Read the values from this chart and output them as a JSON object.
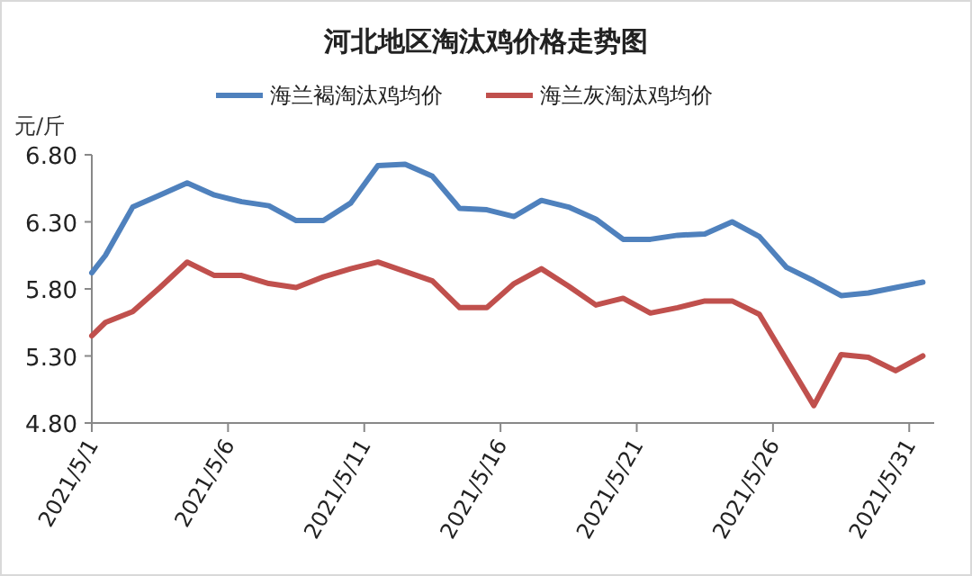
{
  "chart_data": {
    "type": "line",
    "title": "河北地区淘汰鸡价格走势图",
    "ylabel": "元/斤",
    "x": [
      "2021-05-01T00:00",
      "2021-05-01T12:00",
      "2021-05-02T12:00",
      "2021-05-03T12:00",
      "2021-05-04T12:00",
      "2021-05-05T12:00",
      "2021-05-06T12:00",
      "2021-05-07T12:00",
      "2021-05-08T12:00",
      "2021-05-09T12:00",
      "2021-05-10T12:00",
      "2021-05-11T12:00",
      "2021-05-12T12:00",
      "2021-05-13T12:00",
      "2021-05-14T12:00",
      "2021-05-15T12:00",
      "2021-05-16T12:00",
      "2021-05-17T12:00",
      "2021-05-18T12:00",
      "2021-05-19T12:00",
      "2021-05-20T12:00",
      "2021-05-21T12:00",
      "2021-05-22T12:00",
      "2021-05-23T12:00",
      "2021-05-24T12:00",
      "2021-05-25T12:00",
      "2021-05-26T12:00",
      "2021-05-27T12:00",
      "2021-05-28T12:00",
      "2021-05-29T12:00",
      "2021-05-30T12:00",
      "2021-05-31T12:00"
    ],
    "series": [
      {
        "name": "海兰褐淘汰鸡均价",
        "color": "#4f81bd",
        "values": [
          5.92,
          6.05,
          6.41,
          6.5,
          6.59,
          6.5,
          6.45,
          6.42,
          6.31,
          6.31,
          6.44,
          6.72,
          6.73,
          6.64,
          6.4,
          6.39,
          6.34,
          6.46,
          6.41,
          6.32,
          6.17,
          6.17,
          6.2,
          6.21,
          6.3,
          6.19,
          5.96,
          5.86,
          5.75,
          5.77,
          5.81,
          5.85
        ]
      },
      {
        "name": "海兰灰淘汰鸡均价",
        "color": "#c0504d",
        "values": [
          5.45,
          5.55,
          5.63,
          5.81,
          6.0,
          5.9,
          5.9,
          5.84,
          5.81,
          5.89,
          5.95,
          6.0,
          5.93,
          5.86,
          5.66,
          5.66,
          5.84,
          5.95,
          5.82,
          5.68,
          5.73,
          5.62,
          5.66,
          5.71,
          5.71,
          5.61,
          5.27,
          4.93,
          5.31,
          5.29,
          5.19,
          5.3
        ]
      }
    ],
    "xlim": [
      "2021-05-01",
      "2021-05-31T22:00"
    ],
    "xticks": [
      {
        "value": "2021-05-01",
        "label": "2021/5/1"
      },
      {
        "value": "2021-05-06",
        "label": "2021/5/6"
      },
      {
        "value": "2021-05-11",
        "label": "2021/5/11"
      },
      {
        "value": "2021-05-16",
        "label": "2021/5/16"
      },
      {
        "value": "2021-05-21",
        "label": "2021/5/21"
      },
      {
        "value": "2021-05-26",
        "label": "2021/5/26"
      },
      {
        "value": "2021-05-31",
        "label": "2021/5/31"
      }
    ],
    "ylim": [
      4.8,
      6.8
    ],
    "yticks": [
      {
        "value": 4.8,
        "label": "4.80"
      },
      {
        "value": 5.3,
        "label": "5.30"
      },
      {
        "value": 5.8,
        "label": "5.80"
      },
      {
        "value": 6.3,
        "label": "6.30"
      },
      {
        "value": 6.8,
        "label": "6.80"
      }
    ],
    "grid": false,
    "legend": "top",
    "marker": "none",
    "line_style": "solid"
  }
}
